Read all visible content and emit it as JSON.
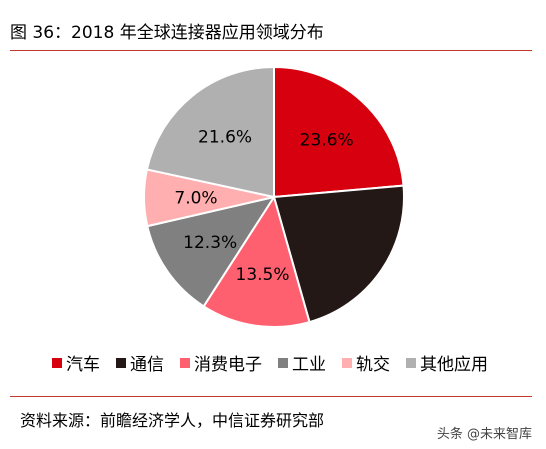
{
  "header": {
    "title": "图 36：2018 年全球连接器应用领域分布"
  },
  "chart_data": {
    "type": "pie",
    "categories": [
      "汽车",
      "通信",
      "消费电子",
      "工业",
      "轨交",
      "其他应用"
    ],
    "values": [
      23.6,
      22.0,
      13.5,
      12.3,
      7.0,
      21.6
    ],
    "value_labels": [
      "23.6%",
      "",
      "13.5%",
      "12.3%",
      "7.0%",
      "21.6%"
    ],
    "colors": [
      "#d7000f",
      "#231815",
      "#ff6070",
      "#808080",
      "#ffafaf",
      "#b0b0b0"
    ],
    "start_angle_deg": 0,
    "direction": "clockwise",
    "legend_position": "bottom"
  },
  "footer": {
    "source": "资料来源：前瞻经济学人，中信证券研究部",
    "watermark": "头条 @未来智库"
  }
}
